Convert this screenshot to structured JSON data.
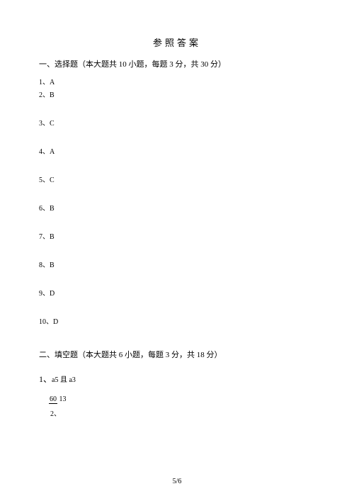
{
  "title": "参照答案",
  "section1": {
    "header": "一、选择题（本大题共 10 小题，每题 3 分，共 30 分）",
    "answers": {
      "a1": "1、A",
      "a2": "2、B",
      "a3": "3、C",
      "a4": "4、A",
      "a5": "5、C",
      "a6": "6、B",
      "a7": "7、B",
      "a8": "8、B",
      "a9": "9、D",
      "a10": "10、D"
    }
  },
  "section2": {
    "header": "二、填空题（本大题共 6 小题，每题 3 分，共 18 分）",
    "q1": {
      "num": "1、",
      "text": "a5 且 a3"
    },
    "q2": {
      "num": "2、",
      "frac_top": "60",
      "frac_bot": "13"
    }
  },
  "pageNumber": "5/6"
}
